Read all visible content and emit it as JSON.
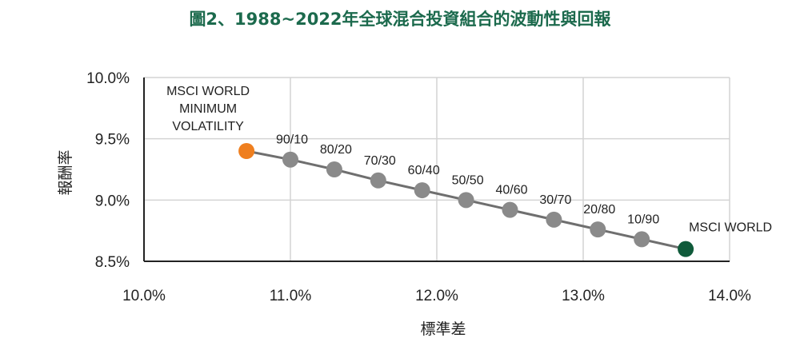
{
  "title": "圖2、1988~2022年全球混合投資組合的波動性與回報",
  "colors": {
    "title": "#1c6a4d",
    "grid": "#d4d4d4",
    "axis": "#222222",
    "line": "#6f6f6f",
    "marker": "#8a8a8a",
    "marker_start": "#ef7f1f",
    "marker_end": "#0f5a3a"
  },
  "chart_data": {
    "type": "scatter",
    "title": "圖2、1988~2022年全球混合投資組合的波動性與回報",
    "xlabel": "標準差",
    "ylabel": "報酬率",
    "xlim": [
      0.1,
      0.14
    ],
    "ylim": [
      0.085,
      0.1
    ],
    "x_ticks": [
      0.1,
      0.11,
      0.12,
      0.13,
      0.14
    ],
    "x_tick_labels": [
      "10.0%",
      "11.0%",
      "12.0%",
      "13.0%",
      "14.0%"
    ],
    "y_ticks": [
      0.085,
      0.09,
      0.095,
      0.1
    ],
    "y_tick_labels": [
      "8.5%",
      "9.0%",
      "9.5%",
      "10.0%"
    ],
    "grid": true,
    "connected": true,
    "points": [
      {
        "label": "MSCI WORLD MINIMUM VOLATILITY",
        "x": 0.107,
        "y": 0.094,
        "color": "#ef7f1f"
      },
      {
        "label": "90/10",
        "x": 0.11,
        "y": 0.0933,
        "color": "#8a8a8a"
      },
      {
        "label": "80/20",
        "x": 0.113,
        "y": 0.0925,
        "color": "#8a8a8a"
      },
      {
        "label": "70/30",
        "x": 0.116,
        "y": 0.0916,
        "color": "#8a8a8a"
      },
      {
        "label": "60/40",
        "x": 0.119,
        "y": 0.0908,
        "color": "#8a8a8a"
      },
      {
        "label": "50/50",
        "x": 0.122,
        "y": 0.09,
        "color": "#8a8a8a"
      },
      {
        "label": "40/60",
        "x": 0.125,
        "y": 0.0892,
        "color": "#8a8a8a"
      },
      {
        "label": "30/70",
        "x": 0.128,
        "y": 0.0884,
        "color": "#8a8a8a"
      },
      {
        "label": "20/80",
        "x": 0.131,
        "y": 0.0876,
        "color": "#8a8a8a"
      },
      {
        "label": "10/90",
        "x": 0.134,
        "y": 0.0868,
        "color": "#8a8a8a"
      },
      {
        "label": "MSCI WORLD",
        "x": 0.137,
        "y": 0.086,
        "color": "#0f5a3a"
      }
    ]
  }
}
